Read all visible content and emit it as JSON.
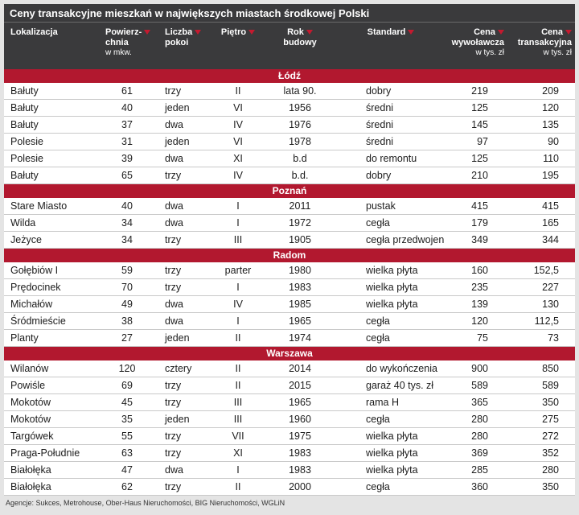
{
  "chart_data": {
    "type": "table",
    "title": "Ceny transakcyjne mieszkań w największych miastach środkowej Polski",
    "source": "Agencje: Sukces, Metrohouse, Ober-Haus Nieruchomości, BIG Nieruchomości, WGLiN",
    "columns": [
      {
        "id": "lokalizacja",
        "lines": [
          "Lokalizacja"
        ],
        "sub": "",
        "sort_arrow": false
      },
      {
        "id": "powierzchnia",
        "lines": [
          "Powierz-",
          "chnia"
        ],
        "sub": "w mkw.",
        "sort_arrow": true
      },
      {
        "id": "liczba-pokoi",
        "lines": [
          "Liczba",
          "pokoi"
        ],
        "sub": "",
        "sort_arrow": true
      },
      {
        "id": "pietro",
        "lines": [
          "Piętro"
        ],
        "sub": "",
        "sort_arrow": true
      },
      {
        "id": "rok-budowy",
        "lines": [
          "Rok",
          "budowy"
        ],
        "sub": "",
        "sort_arrow": true
      },
      {
        "id": "standard",
        "lines": [
          "Standard"
        ],
        "sub": "",
        "sort_arrow": true
      },
      {
        "id": "cena-wywolawcza",
        "lines": [
          "Cena",
          "wywoławcza"
        ],
        "sub": "w tys. zł",
        "sort_arrow": true
      },
      {
        "id": "cena-transakcyjna",
        "lines": [
          "Cena",
          "transakcyjna"
        ],
        "sub": "w tys. zł",
        "sort_arrow": true
      }
    ],
    "sections": [
      {
        "city": "Łódź",
        "rows": [
          [
            "Bałuty",
            "61",
            "trzy",
            "II",
            "lata 90.",
            "dobry",
            "219",
            "209"
          ],
          [
            "Bałuty",
            "40",
            "jeden",
            "VI",
            "1956",
            "średni",
            "125",
            "120"
          ],
          [
            "Bałuty",
            "37",
            "dwa",
            "IV",
            "1976",
            "średni",
            "145",
            "135"
          ],
          [
            "Polesie",
            "31",
            "jeden",
            "VI",
            "1978",
            "średni",
            "97",
            "90"
          ],
          [
            "Polesie",
            "39",
            "dwa",
            "XI",
            "b.d",
            "do remontu",
            "125",
            "110"
          ],
          [
            "Bałuty",
            "65",
            "trzy",
            "IV",
            "b.d.",
            "dobry",
            "210",
            "195"
          ]
        ]
      },
      {
        "city": "Poznań",
        "rows": [
          [
            "Stare Miasto",
            "40",
            "dwa",
            "I",
            "2011",
            "pustak",
            "415",
            "415"
          ],
          [
            "Wilda",
            "34",
            "dwa",
            "I",
            "1972",
            "cegła",
            "179",
            "165"
          ],
          [
            "Jeżyce",
            "34",
            "trzy",
            "III",
            "1905",
            "cegła przedwojenna",
            "349",
            "344"
          ]
        ]
      },
      {
        "city": "Radom",
        "rows": [
          [
            "Gołębiów I",
            "59",
            "trzy",
            "parter",
            "1980",
            "wielka płyta",
            "160",
            "152,5"
          ],
          [
            "Prędocinek",
            "70",
            "trzy",
            "I",
            "1983",
            "wielka płyta",
            "235",
            "227"
          ],
          [
            "Michałów",
            "49",
            "dwa",
            "IV",
            "1985",
            "wielka płyta",
            "139",
            "130"
          ],
          [
            "Śródmieście",
            "38",
            "dwa",
            "I",
            "1965",
            "cegła",
            "120",
            "112,5"
          ],
          [
            "Planty",
            "27",
            "jeden",
            "II",
            "1974",
            "cegła",
            "75",
            "73"
          ]
        ]
      },
      {
        "city": "Warszawa",
        "rows": [
          [
            "Wilanów",
            "120",
            "cztery",
            "II",
            "2014",
            "do wykończenia",
            "900",
            "850"
          ],
          [
            "Powiśle",
            "69",
            "trzy",
            "II",
            "2015",
            "garaż 40 tys. zł",
            "589",
            "589"
          ],
          [
            "Mokotów",
            "45",
            "trzy",
            "III",
            "1965",
            "rama H",
            "365",
            "350"
          ],
          [
            "Mokotów",
            "35",
            "jeden",
            "III",
            "1960",
            "cegła",
            "280",
            "275"
          ],
          [
            "Targówek",
            "55",
            "trzy",
            "VII",
            "1975",
            "wielka płyta",
            "280",
            "272"
          ],
          [
            "Praga-Południe",
            "63",
            "trzy",
            "XI",
            "1983",
            "wielka płyta",
            "369",
            "352"
          ],
          [
            "Białołęka",
            "47",
            "dwa",
            "I",
            "1983",
            "wielka płyta",
            "285",
            "280"
          ],
          [
            "Białołęka",
            "62",
            "trzy",
            "II",
            "2000",
            "cegła",
            "360",
            "350"
          ]
        ]
      }
    ]
  },
  "colors": {
    "header_bg": "#3a3a3c",
    "section_bg": "#b2182f",
    "sort_arrow": "#c41a2f",
    "row_bg": "#ffffff",
    "row_separator": "#c9c9c9",
    "text": "#1c1c1c"
  }
}
